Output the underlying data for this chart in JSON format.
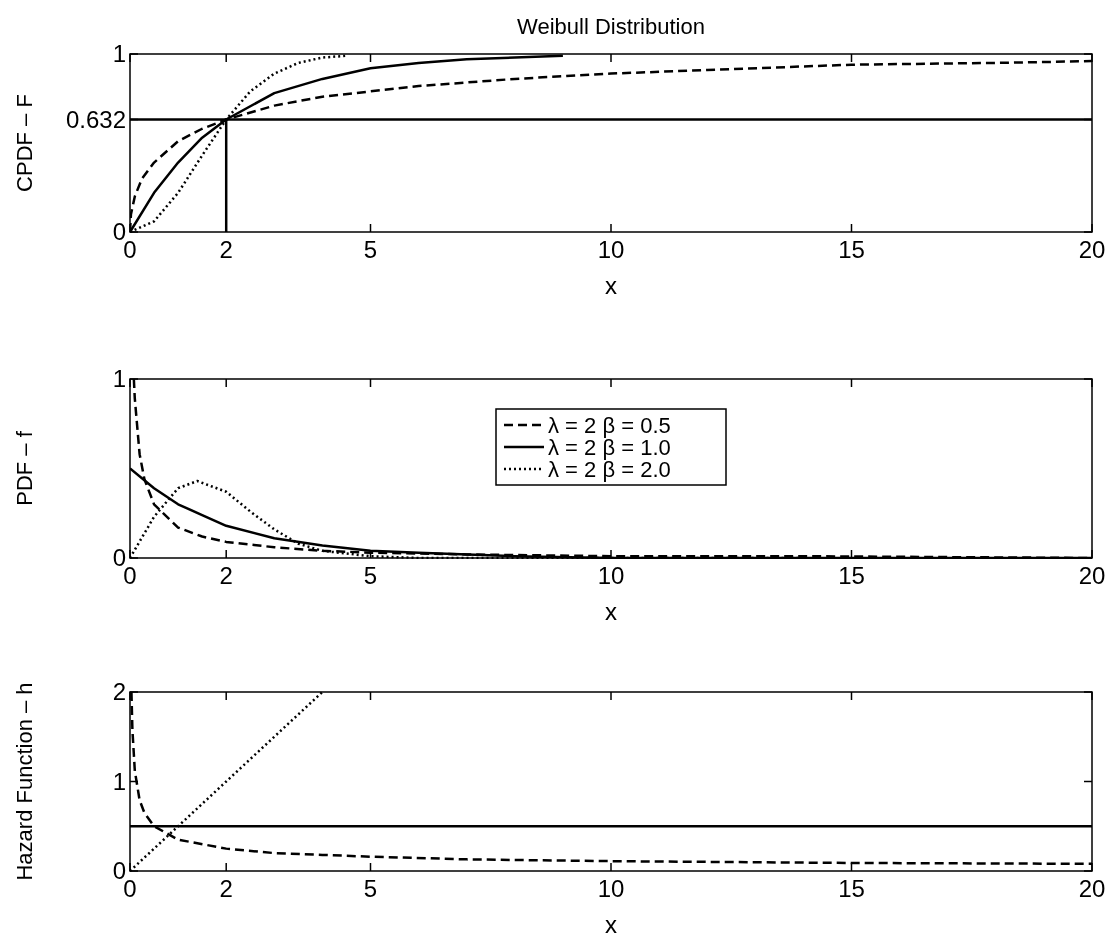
{
  "chart_data": [
    {
      "type": "line",
      "title": "Weibull Distribution",
      "xlabel": "x",
      "ylabel": "CPDF – F",
      "xlim": [
        0,
        20
      ],
      "ylim": [
        0,
        1
      ],
      "xticks": [
        0,
        2,
        5,
        10,
        15,
        20
      ],
      "yticks": [
        0,
        0.632,
        1
      ],
      "marker": "none",
      "ref_lines": [
        {
          "axis": "y",
          "value": 0.632,
          "color": "#000000",
          "line_style": "solid"
        },
        {
          "axis": "x",
          "value": 2,
          "color": "#000000",
          "line_style": "solid"
        }
      ],
      "series": [
        {
          "color": "#000000",
          "line_style": "dashed",
          "x": [
            0,
            0.02,
            0.1,
            0.25,
            0.5,
            1,
            1.5,
            2,
            3,
            4,
            5,
            6,
            8,
            10,
            12,
            15,
            18,
            20
          ],
          "values": [
            0,
            0.1,
            0.2,
            0.3,
            0.39,
            0.51,
            0.58,
            0.632,
            0.71,
            0.76,
            0.79,
            0.82,
            0.86,
            0.89,
            0.91,
            0.94,
            0.95,
            0.96
          ]
        },
        {
          "color": "#000000",
          "line_style": "solid",
          "x": [
            0,
            0.5,
            1,
            1.5,
            2,
            3,
            4,
            5,
            6,
            7,
            8,
            9
          ],
          "values": [
            0,
            0.22,
            0.39,
            0.53,
            0.632,
            0.78,
            0.86,
            0.92,
            0.95,
            0.97,
            0.98,
            0.99
          ]
        },
        {
          "color": "#000000",
          "line_style": "dotted",
          "x": [
            0,
            0.5,
            1,
            1.5,
            2,
            2.5,
            3,
            3.5,
            4,
            4.5
          ],
          "values": [
            0,
            0.06,
            0.22,
            0.43,
            0.632,
            0.79,
            0.89,
            0.95,
            0.98,
            0.99
          ]
        }
      ]
    },
    {
      "type": "line",
      "xlabel": "x",
      "ylabel": "PDF – f",
      "xlim": [
        0,
        20
      ],
      "ylim": [
        0,
        1
      ],
      "xticks": [
        0,
        2,
        5,
        10,
        15,
        20
      ],
      "yticks": [
        0,
        1
      ],
      "marker": "none",
      "legend": "top",
      "series": [
        {
          "name": "λ = 2 β = 0.5",
          "color": "#000000",
          "line_style": "dashed",
          "x": [
            0.08,
            0.1,
            0.2,
            0.3,
            0.5,
            1,
            1.5,
            2,
            3,
            4,
            5,
            7,
            10,
            14,
            20
          ],
          "values": [
            1.0,
            0.89,
            0.58,
            0.44,
            0.3,
            0.17,
            0.12,
            0.09,
            0.06,
            0.04,
            0.03,
            0.02,
            0.01,
            0.01,
            0
          ]
        },
        {
          "name": "λ = 2 β = 1.0",
          "color": "#000000",
          "line_style": "solid",
          "x": [
            0,
            0.5,
            1,
            1.5,
            2,
            3,
            4,
            5,
            6,
            8,
            10,
            15,
            20
          ],
          "values": [
            0.5,
            0.39,
            0.3,
            0.24,
            0.18,
            0.11,
            0.07,
            0.04,
            0.03,
            0.01,
            0,
            0,
            0
          ]
        },
        {
          "name": "λ = 2 β = 2.0",
          "color": "#000000",
          "line_style": "dotted",
          "x": [
            0,
            0.5,
            1,
            1.4,
            2,
            2.5,
            3,
            3.5,
            4,
            5,
            6,
            10,
            14
          ],
          "values": [
            0,
            0.23,
            0.39,
            0.43,
            0.37,
            0.26,
            0.16,
            0.08,
            0.04,
            0.01,
            0,
            0,
            0
          ]
        }
      ]
    },
    {
      "type": "line",
      "xlabel": "x",
      "ylabel": "Hazard Function – h",
      "xlim": [
        0,
        20
      ],
      "ylim": [
        0,
        2
      ],
      "xticks": [
        0,
        2,
        5,
        10,
        15,
        20
      ],
      "yticks": [
        0,
        1,
        2
      ],
      "marker": "none",
      "series": [
        {
          "color": "#000000",
          "line_style": "dashed",
          "x": [
            0.03,
            0.05,
            0.1,
            0.2,
            0.3,
            0.5,
            1,
            2,
            3,
            4,
            5,
            7,
            10,
            15,
            20
          ],
          "values": [
            2.0,
            1.58,
            1.12,
            0.79,
            0.65,
            0.5,
            0.35,
            0.25,
            0.2,
            0.18,
            0.16,
            0.13,
            0.11,
            0.09,
            0.08
          ]
        },
        {
          "color": "#000000",
          "line_style": "solid",
          "x": [
            0,
            20
          ],
          "values": [
            0.5,
            0.5
          ]
        },
        {
          "color": "#000000",
          "line_style": "dotted",
          "x": [
            0,
            2,
            4
          ],
          "values": [
            0,
            1,
            2
          ]
        }
      ]
    }
  ]
}
